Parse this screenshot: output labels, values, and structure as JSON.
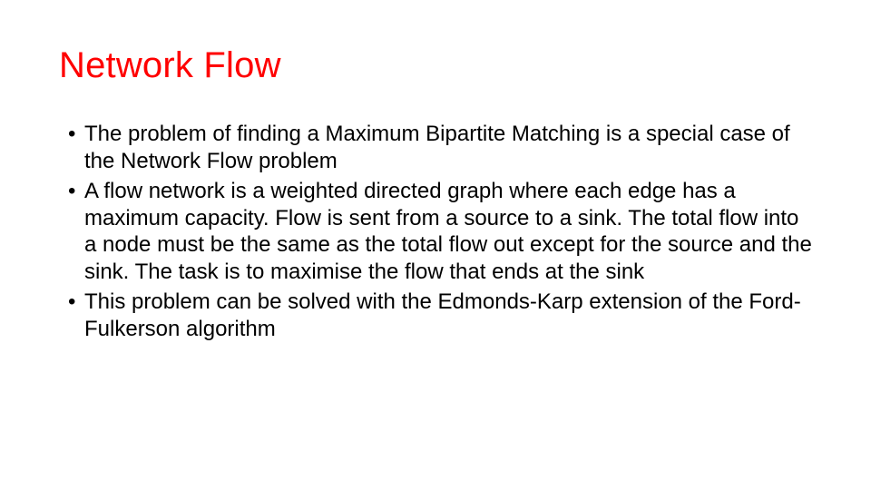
{
  "slide": {
    "title": "Network Flow",
    "title_color": "#ff0000",
    "title_fontsize": 40,
    "body_color": "#000000",
    "body_fontsize": 24,
    "background_color": "#ffffff",
    "bullets": [
      "The problem of finding a Maximum Bipartite Matching is a special case of the Network Flow problem",
      "A flow network is a weighted directed graph where each edge has a maximum capacity. Flow is sent from a source to a sink. The total flow into a node must be the same as the total flow out except for the source and the sink. The task is to maximise the flow that ends at the sink",
      "This problem can be solved with the Edmonds-Karp extension of the Ford-Fulkerson algorithm"
    ]
  }
}
